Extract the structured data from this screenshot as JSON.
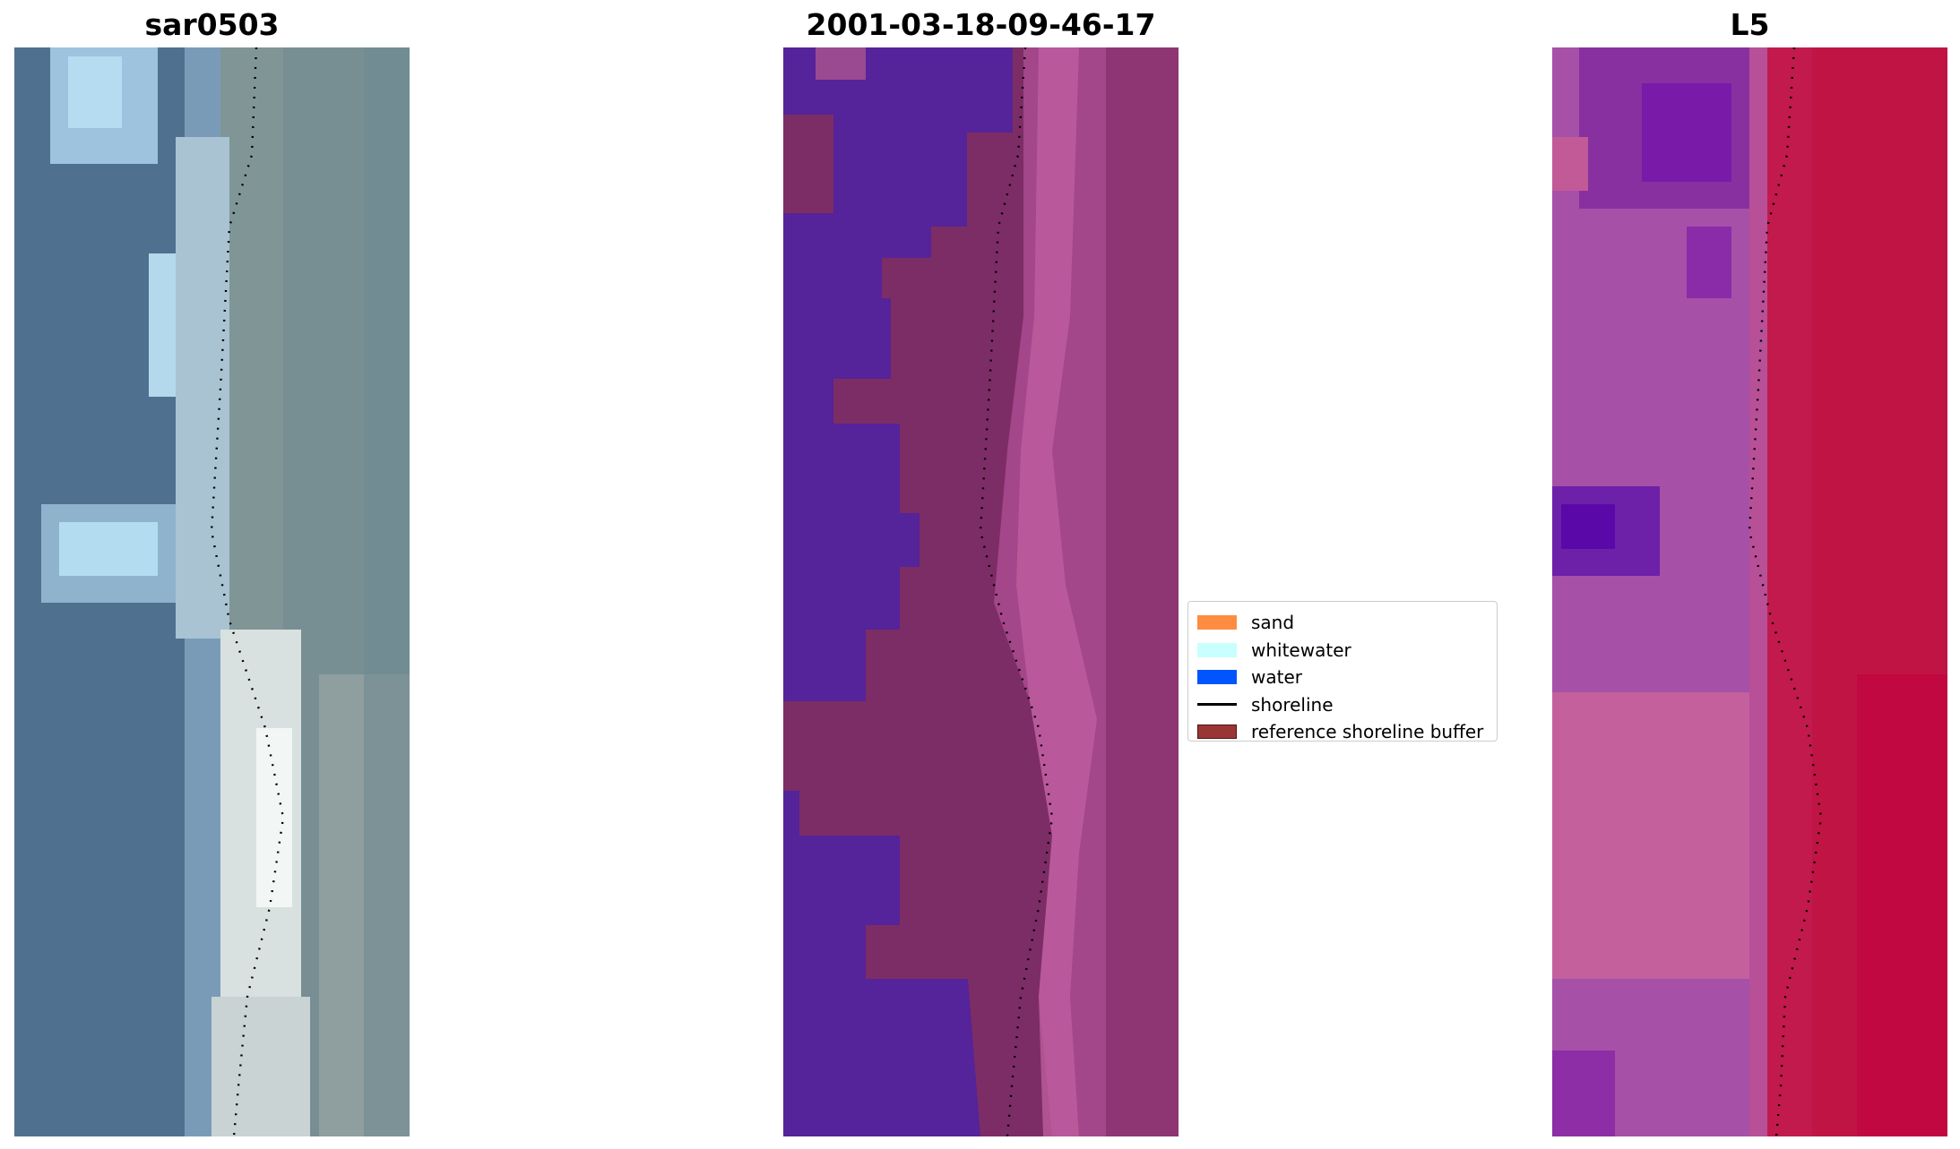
{
  "panels": [
    {
      "title": "sar0503"
    },
    {
      "title": "2001-03-18-09-46-17"
    },
    {
      "title": "L5"
    }
  ],
  "legend": {
    "placement": "center",
    "items": [
      {
        "label": "sand",
        "color": "#ff8c40",
        "kind": "patch"
      },
      {
        "label": "whitewater",
        "color": "#c8ffff",
        "kind": "patch"
      },
      {
        "label": "water",
        "color": "#0055ff",
        "kind": "patch"
      },
      {
        "label": "shoreline",
        "color": "#000000",
        "kind": "line"
      },
      {
        "label": "reference shoreline buffer",
        "color": "#9b3535",
        "kind": "patch",
        "border": "#4a1515"
      }
    ]
  },
  "colors": {
    "rgb_water": "#52739a",
    "rgb_surf": "#d8f0f4",
    "rgb_land": "#7f9698",
    "class_water_purple": "#55239a",
    "class_buffer": "#7d2d65",
    "class_sand_pink": "#a84b8a",
    "index_purple": "#a04aae",
    "index_pink": "#c65a95",
    "index_red": "#c01848",
    "shoreline": "#000000"
  }
}
